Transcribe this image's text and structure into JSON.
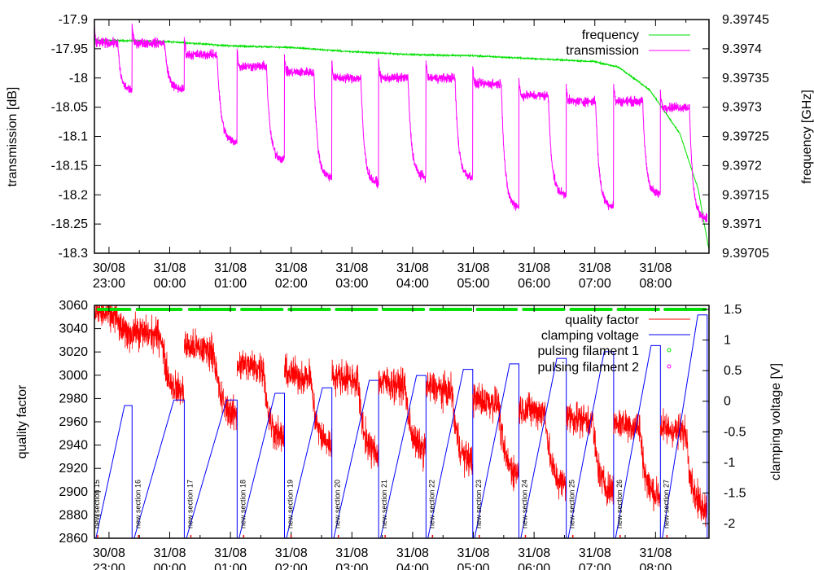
{
  "chart_data": [
    {
      "type": "line",
      "name": "top-panel",
      "xlabel": "",
      "ylabel": "transmission [dB]",
      "y2label": "frequency [GHz]",
      "xlim_hours": [
        22.76,
        32.88
      ],
      "ylim": [
        -18.3,
        -17.9
      ],
      "y2lim": [
        9.39705,
        9.39745
      ],
      "x_ticks": [
        {
          "h": 23,
          "d": "30/08",
          "t": "23:00"
        },
        {
          "h": 24,
          "d": "31/08",
          "t": "00:00"
        },
        {
          "h": 25,
          "d": "31/08",
          "t": "01:00"
        },
        {
          "h": 26,
          "d": "31/08",
          "t": "02:00"
        },
        {
          "h": 27,
          "d": "31/08",
          "t": "03:00"
        },
        {
          "h": 28,
          "d": "31/08",
          "t": "04:00"
        },
        {
          "h": 29,
          "d": "31/08",
          "t": "05:00"
        },
        {
          "h": 30,
          "d": "31/08",
          "t": "06:00"
        },
        {
          "h": 31,
          "d": "31/08",
          "t": "07:00"
        },
        {
          "h": 32,
          "d": "31/08",
          "t": "08:00"
        }
      ],
      "y_ticks": [
        "-17.9",
        "-17.95",
        "-18",
        "-18.05",
        "-18.1",
        "-18.15",
        "-18.2",
        "-18.25",
        "-18.3"
      ],
      "y2_ticks": [
        "9.39745",
        "9.3974",
        "9.39735",
        "9.3973",
        "9.39725",
        "9.3972",
        "9.39715",
        "9.3971",
        "9.39705"
      ],
      "legend": {
        "placement": "top-right",
        "entries": [
          {
            "label": "frequency",
            "color": "#00e000"
          },
          {
            "label": "transmission",
            "color": "#ff00ff"
          }
        ]
      },
      "frequency_trend": [
        [
          22.76,
          9.397415
        ],
        [
          24.0,
          9.397412
        ],
        [
          25.0,
          9.397405
        ],
        [
          26.0,
          9.397402
        ],
        [
          27.0,
          9.397395
        ],
        [
          28.0,
          9.39739
        ],
        [
          29.0,
          9.397388
        ],
        [
          30.0,
          9.397383
        ],
        [
          31.0,
          9.397378
        ],
        [
          31.4,
          9.397368
        ],
        [
          31.9,
          9.39733
        ],
        [
          32.4,
          9.397255
        ],
        [
          32.7,
          9.39716
        ],
        [
          32.88,
          9.397055
        ]
      ],
      "transmission_segments": [
        {
          "start": 22.76,
          "high": -17.94,
          "low": -18.02
        },
        {
          "start": 23.38,
          "high": -17.94,
          "low": -18.02
        },
        {
          "start": 24.24,
          "high": -17.96,
          "low": -18.11
        },
        {
          "start": 25.11,
          "high": -17.98,
          "low": -18.14
        },
        {
          "start": 25.89,
          "high": -17.99,
          "low": -18.17
        },
        {
          "start": 26.67,
          "high": -18.0,
          "low": -18.18
        },
        {
          "start": 27.44,
          "high": -18.0,
          "low": -18.17
        },
        {
          "start": 28.22,
          "high": -18.0,
          "low": -18.17
        },
        {
          "start": 28.99,
          "high": -18.01,
          "low": -18.22
        },
        {
          "start": 29.75,
          "high": -18.03,
          "low": -18.2
        },
        {
          "start": 30.53,
          "high": -18.04,
          "low": -18.22
        },
        {
          "start": 31.31,
          "high": -18.04,
          "low": -18.2
        },
        {
          "start": 32.08,
          "high": -18.05,
          "low": -18.24
        }
      ],
      "end": 32.85
    },
    {
      "type": "line",
      "name": "bottom-panel",
      "ylabel": "quality factor",
      "y2label": "clamping voltage [V]",
      "xlim_hours": [
        22.76,
        32.88
      ],
      "ylim": [
        2860,
        3060
      ],
      "y2lim": [
        -2.24,
        1.567
      ],
      "y_ticks": [
        "3060",
        "3040",
        "3020",
        "3000",
        "2980",
        "2960",
        "2940",
        "2920",
        "2900",
        "2880",
        "2860"
      ],
      "y2_ticks": [
        "1.5",
        "1",
        "0.5",
        "0",
        "-0.5",
        "-1",
        "-1.5",
        "-2"
      ],
      "legend": {
        "placement": "top-right",
        "entries": [
          {
            "label": "quality factor",
            "color": "#ff0000"
          },
          {
            "label": "clamping voltage",
            "color": "#0000ff"
          },
          {
            "label": "pulsing filament 1",
            "color": "#00e000"
          },
          {
            "label": "pulsing filament 2",
            "color": "#ff00ff"
          }
        ]
      },
      "sections": [
        {
          "label": "new section 15",
          "start": 22.76,
          "q_high": 3055,
          "q_low": 3035,
          "v_peak": -0.07
        },
        {
          "label": "new section 16",
          "start": 23.38,
          "q_high": 3038,
          "q_low": 2985,
          "v_peak": 0.02
        },
        {
          "label": "new section 17",
          "start": 24.24,
          "q_high": 3025,
          "q_low": 2965,
          "v_peak": 0.02
        },
        {
          "label": "new section 18",
          "start": 25.11,
          "q_high": 3010,
          "q_low": 2945,
          "v_peak": 0.13
        },
        {
          "label": "new section 19",
          "start": 25.89,
          "q_high": 3002,
          "q_low": 2940,
          "v_peak": 0.22
        },
        {
          "label": "new section 20",
          "start": 26.67,
          "q_high": 3000,
          "q_low": 2932,
          "v_peak": 0.34
        },
        {
          "label": "new section 21",
          "start": 27.44,
          "q_high": 2995,
          "q_low": 2935,
          "v_peak": 0.42
        },
        {
          "label": "new section 22",
          "start": 28.22,
          "q_high": 2990,
          "q_low": 2925,
          "v_peak": 0.52
        },
        {
          "label": "new section 23",
          "start": 28.99,
          "q_high": 2980,
          "q_low": 2915,
          "v_peak": 0.61
        },
        {
          "label": "new section 24",
          "start": 29.75,
          "q_high": 2972,
          "q_low": 2905,
          "v_peak": 0.7
        },
        {
          "label": "new section 25",
          "start": 30.53,
          "q_high": 2965,
          "q_low": 2900,
          "v_peak": 0.81
        },
        {
          "label": "new section 26",
          "start": 31.31,
          "q_high": 2960,
          "q_low": 2895,
          "v_peak": 0.91
        },
        {
          "label": "new section 27",
          "start": 32.08,
          "q_high": 2955,
          "q_low": 2885,
          "v_peak": 1.41
        }
      ],
      "pulsing_filament_1_level": 1.5,
      "end": 32.85
    }
  ]
}
